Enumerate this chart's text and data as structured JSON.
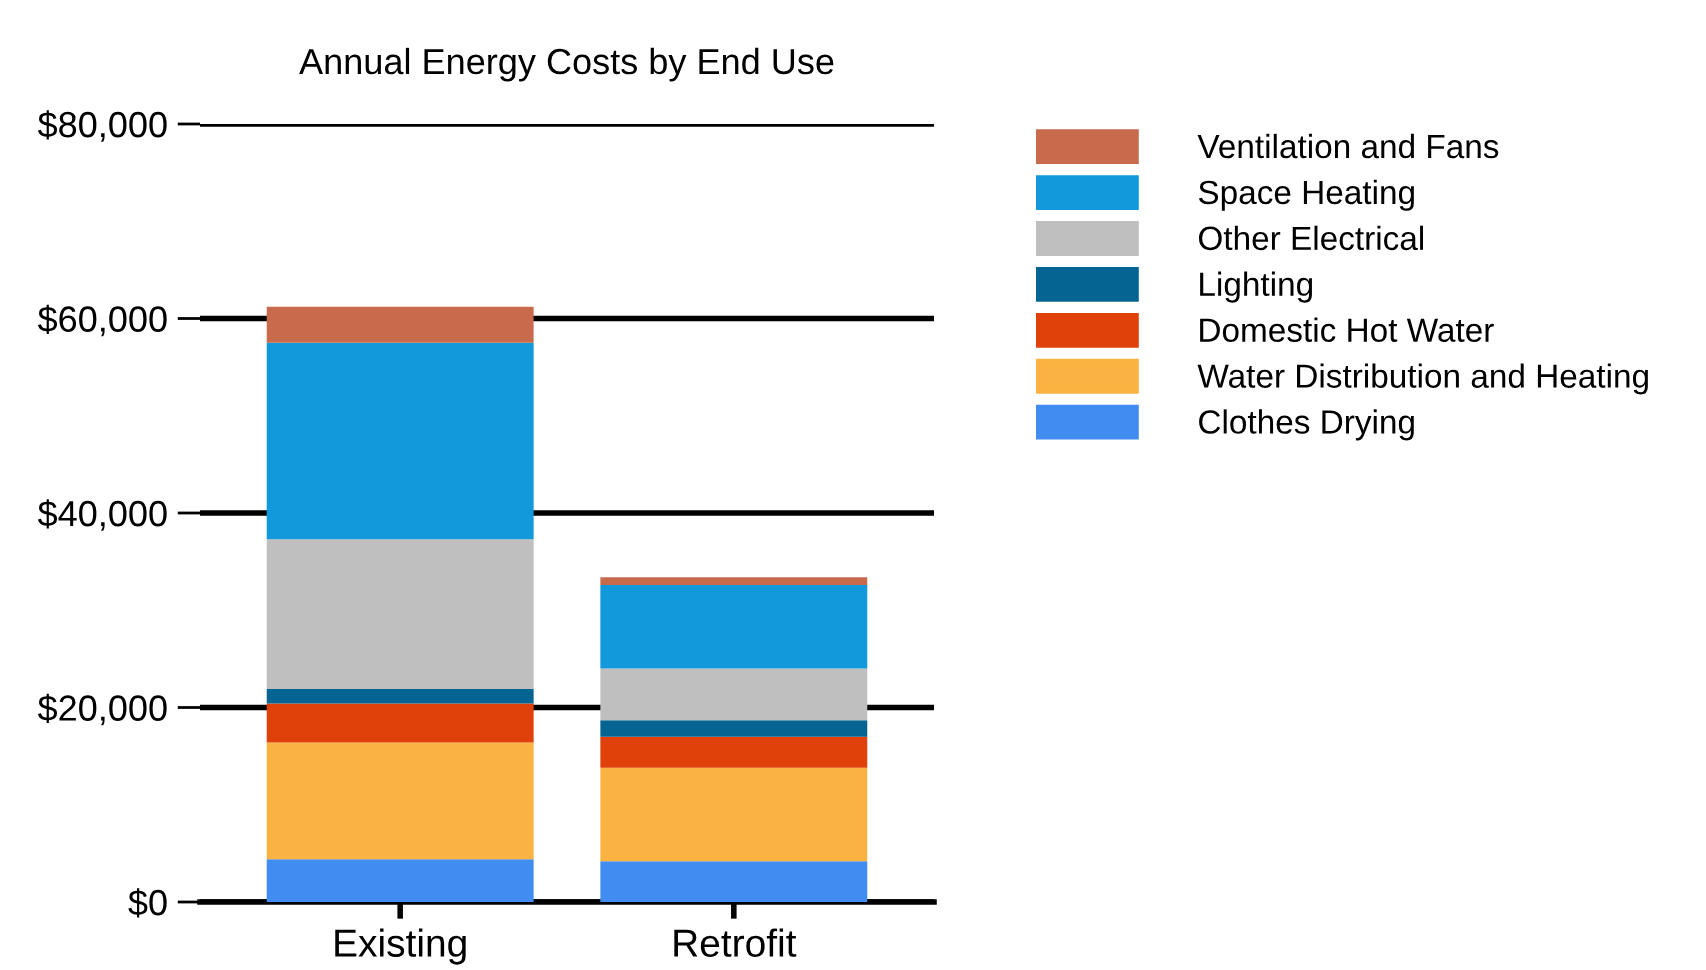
{
  "chart_data": {
    "type": "bar",
    "title": "Annual Energy Costs by End Use",
    "stacked": true,
    "categories": [
      "Existing",
      "Retrofit"
    ],
    "series": [
      {
        "name": "Clothes Drying",
        "color": "#418cf0",
        "values": [
          4400,
          4200
        ]
      },
      {
        "name": "Water Distribution and Heating",
        "color": "#fab242",
        "values": [
          12000,
          9600
        ]
      },
      {
        "name": "Domestic Hot Water",
        "color": "#e0400a",
        "values": [
          4000,
          3200
        ]
      },
      {
        "name": "Lighting",
        "color": "#056492",
        "values": [
          1500,
          1700
        ]
      },
      {
        "name": "Other Electrical",
        "color": "#bfbfbf",
        "values": [
          15400,
          5300
        ]
      },
      {
        "name": "Space Heating",
        "color": "#1299dc",
        "values": [
          20200,
          8600
        ]
      },
      {
        "name": "Ventilation and Fans",
        "color": "#c86b4d",
        "values": [
          3700,
          800
        ]
      }
    ],
    "ylim": [
      0,
      80000
    ],
    "yticks": [
      {
        "value": 0,
        "label": "$0"
      },
      {
        "value": 20000,
        "label": "$20,000"
      },
      {
        "value": 40000,
        "label": "$40,000"
      },
      {
        "value": 60000,
        "label": "$60,000"
      },
      {
        "value": 80000,
        "label": "$80,000"
      }
    ],
    "grid": "y",
    "legend": "right"
  }
}
